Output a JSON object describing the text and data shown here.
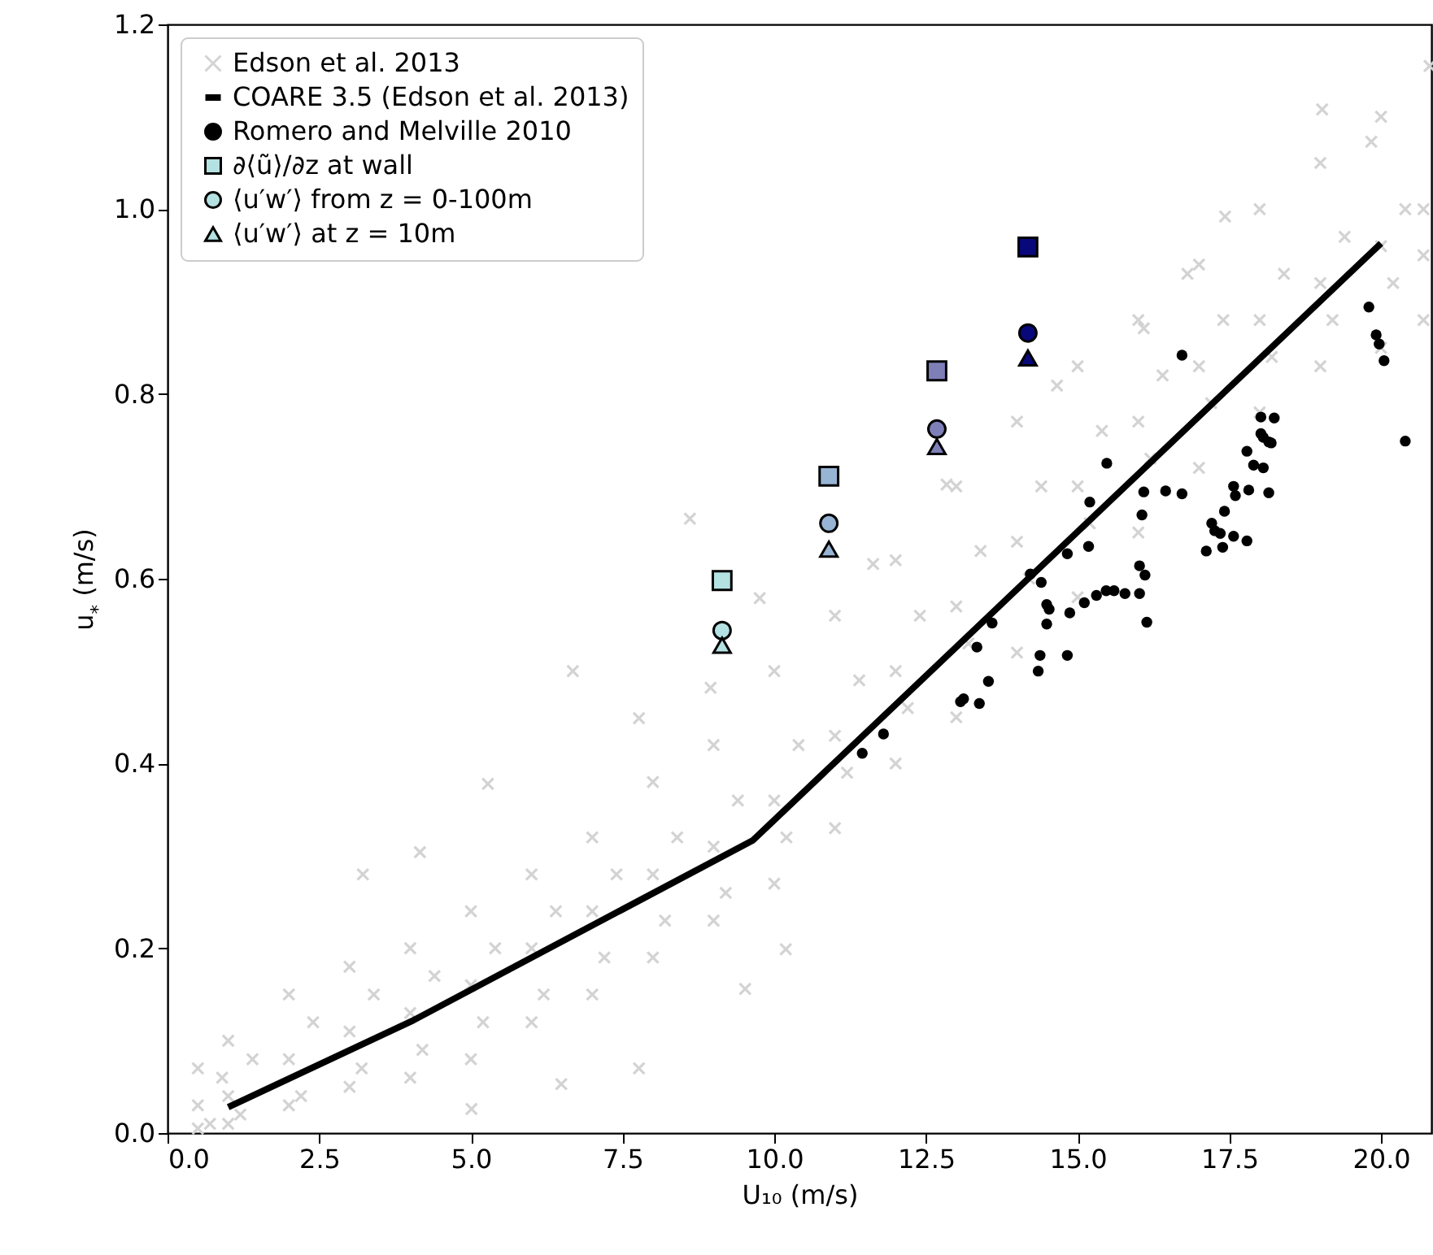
{
  "chart_data": {
    "type": "scatter",
    "xlabel": "U₁₀ (m/s)",
    "ylabel": "u$_{*}$ (m/s)",
    "xlim": [
      0,
      20.83
    ],
    "ylim": [
      0,
      1.2
    ],
    "xticks": [
      {
        "value": 0,
        "label": "0.0"
      },
      {
        "value": 2.5,
        "label": "2.5"
      },
      {
        "value": 5,
        "label": "5.0"
      },
      {
        "value": 7.5,
        "label": "7.5"
      },
      {
        "value": 10,
        "label": "10.0"
      },
      {
        "value": 12.5,
        "label": "12.5"
      },
      {
        "value": 15,
        "label": "15.0"
      },
      {
        "value": 17.5,
        "label": "17.5"
      },
      {
        "value": 20,
        "label": "20.0"
      }
    ],
    "yticks": [
      {
        "value": 0,
        "label": "0.0"
      },
      {
        "value": 0.2,
        "label": "0.2"
      },
      {
        "value": 0.4,
        "label": "0.4"
      },
      {
        "value": 0.6,
        "label": "0.6"
      },
      {
        "value": 0.8,
        "label": "0.8"
      },
      {
        "value": 1,
        "label": "1.0"
      },
      {
        "value": 1.2,
        "label": "1.2"
      }
    ],
    "legend": "top left",
    "series": [
      {
        "name": "Edson et al. 2013",
        "marker": "cross",
        "color": "#d3d3d3",
        "x": [
          0.5,
          0.5,
          0.5,
          0.9,
          0.7,
          1,
          1,
          1,
          1.4,
          1.2,
          2,
          2,
          2,
          2.4,
          2.2,
          3,
          3,
          3,
          3.4,
          3.2,
          4,
          4,
          4,
          4.4,
          4.2,
          5,
          5,
          5,
          5.4,
          5.2,
          6,
          6,
          6,
          6.4,
          6.2,
          7,
          7,
          7,
          7.4,
          7.2,
          8,
          8,
          8,
          8.4,
          8.2,
          9,
          9,
          9,
          9.4,
          9.2,
          10,
          10,
          10,
          10.4,
          10.2,
          11,
          11,
          11,
          11.4,
          11.2,
          12,
          12,
          12,
          12.4,
          12.2,
          13,
          13,
          13,
          13.4,
          13.2,
          14,
          14,
          14,
          14.4,
          14.2,
          15,
          15,
          15,
          15.4,
          15.2,
          16,
          16,
          16,
          16.4,
          16.2,
          17,
          17,
          17,
          17.4,
          17.2,
          18,
          18,
          18,
          18.4,
          18.2,
          19,
          19,
          19,
          19.4,
          19.2,
          20,
          20,
          20,
          20.4,
          20.2,
          20.7,
          20.7,
          20.7,
          20.8,
          19.03,
          19.84,
          17.43,
          16.81,
          16.09,
          14.66,
          8.61,
          9.76,
          12.84,
          11.63,
          6.68,
          5.28,
          4.16,
          3.22,
          7.77,
          9.52,
          10.19,
          7.77,
          8.95,
          5.01,
          6.49
        ],
        "values": [
          0.005,
          0.03,
          0.07,
          0.06,
          0.01,
          0.01,
          0.04,
          0.1,
          0.08,
          0.02,
          0.03,
          0.08,
          0.15,
          0.12,
          0.04,
          0.05,
          0.11,
          0.18,
          0.15,
          0.07,
          0.06,
          0.13,
          0.2,
          0.17,
          0.09,
          0.08,
          0.16,
          0.24,
          0.2,
          0.12,
          0.12,
          0.2,
          0.28,
          0.24,
          0.15,
          0.15,
          0.24,
          0.32,
          0.28,
          0.19,
          0.19,
          0.28,
          0.38,
          0.32,
          0.23,
          0.23,
          0.31,
          0.42,
          0.36,
          0.26,
          0.27,
          0.36,
          0.5,
          0.42,
          0.32,
          0.33,
          0.43,
          0.56,
          0.49,
          0.39,
          0.4,
          0.5,
          0.62,
          0.56,
          0.46,
          0.45,
          0.57,
          0.7,
          0.63,
          0.53,
          0.52,
          0.64,
          0.77,
          0.7,
          0.6,
          0.58,
          0.7,
          0.83,
          0.76,
          0.66,
          0.65,
          0.77,
          0.88,
          0.82,
          0.73,
          0.72,
          0.83,
          0.94,
          0.88,
          0.79,
          0.78,
          0.88,
          1.0,
          0.93,
          0.84,
          0.83,
          0.92,
          1.05,
          0.97,
          0.88,
          0.85,
          0.96,
          1.1,
          1.0,
          0.92,
          0.88,
          0.95,
          1.0,
          1.155,
          1.108,
          1.073,
          0.992,
          0.93,
          0.871,
          0.809,
          0.665,
          0.579,
          0.702,
          0.616,
          0.5,
          0.378,
          0.304,
          0.28,
          0.07,
          0.156,
          0.199,
          0.449,
          0.482,
          0.026,
          0.053
        ]
      },
      {
        "name": "COARE 3.5 (Edson et al. 2013)",
        "type": "line",
        "color": "#000000",
        "x": [
          1.0,
          4.05,
          9.65,
          20.0
        ],
        "values": [
          0.028,
          0.122,
          0.317,
          0.963
        ]
      },
      {
        "name": "Romero and Melville 2010",
        "marker": "circle",
        "color": "#000000",
        "x": [
          11.45,
          11.8,
          13.07,
          13.12,
          13.38,
          13.53,
          13.34,
          13.59,
          14.22,
          14.4,
          14.49,
          14.53,
          14.49,
          14.38,
          14.35,
          14.83,
          14.87,
          14.83,
          15.18,
          15.2,
          15.11,
          15.31,
          15.47,
          15.6,
          15.78,
          16.02,
          16.02,
          16.11,
          16.14,
          16.06,
          16.09,
          16.45,
          16.72,
          16.72,
          15.48,
          17.12,
          17.39,
          17.57,
          17.79,
          17.21,
          17.26,
          17.35,
          17.42,
          17.57,
          17.6,
          17.82,
          18.15,
          17.79,
          17.9,
          18.06,
          18.02,
          18.24,
          18.02,
          18.06,
          18.15,
          18.19,
          19.8,
          19.92,
          19.97,
          20.05,
          20.4
        ],
        "values": [
          0.411,
          0.432,
          0.467,
          0.47,
          0.465,
          0.489,
          0.526,
          0.552,
          0.605,
          0.596,
          0.572,
          0.567,
          0.551,
          0.517,
          0.5,
          0.517,
          0.563,
          0.627,
          0.635,
          0.683,
          0.574,
          0.582,
          0.587,
          0.587,
          0.584,
          0.584,
          0.614,
          0.604,
          0.553,
          0.669,
          0.694,
          0.695,
          0.692,
          0.842,
          0.725,
          0.63,
          0.634,
          0.646,
          0.641,
          0.66,
          0.652,
          0.649,
          0.673,
          0.7,
          0.69,
          0.696,
          0.693,
          0.738,
          0.723,
          0.72,
          0.775,
          0.774,
          0.757,
          0.753,
          0.748,
          0.747,
          0.894,
          0.864,
          0.854,
          0.836,
          0.749
        ]
      },
      {
        "name": "∂⟨ũ⟩/∂z at wall",
        "marker": "square",
        "colors": [
          "#b4e1e1",
          "#98b4d4",
          "#7f7fb8",
          "#08087a"
        ],
        "x": [
          9.14,
          10.9,
          12.68,
          14.18
        ],
        "values": [
          0.598,
          0.711,
          0.825,
          0.959
        ]
      },
      {
        "name": "⟨u′w′⟩ from z = 0-100m",
        "marker": "circle",
        "colors": [
          "#b4e1e1",
          "#98b4d4",
          "#7f7fb8",
          "#08087a"
        ],
        "x": [
          9.14,
          10.9,
          12.68,
          14.18
        ],
        "values": [
          0.544,
          0.66,
          0.762,
          0.866
        ]
      },
      {
        "name": "⟨u′w′⟩ at z = 10m",
        "marker": "triangle",
        "colors": [
          "#b4e1e1",
          "#98b4d4",
          "#7f7fb8",
          "#08087a"
        ],
        "x": [
          9.14,
          10.9,
          12.68,
          14.18
        ],
        "values": [
          0.528,
          0.632,
          0.743,
          0.839
        ]
      }
    ]
  }
}
